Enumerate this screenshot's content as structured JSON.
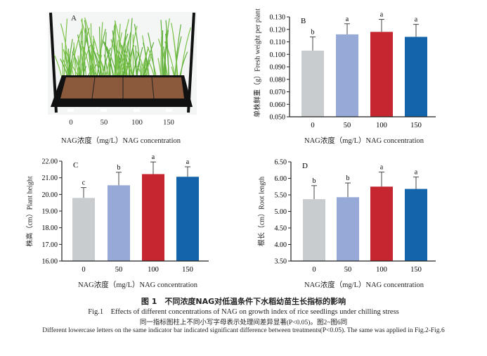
{
  "colors": {
    "0": "#c9cccf",
    "50": "#97aad7",
    "100": "#c6262f",
    "150": "#1464ac"
  },
  "panel_a": {
    "label": "A",
    "image": "photo of rice seedlings in tray with four treatments",
    "x_ticks": [
      "0",
      "50",
      "100",
      "150"
    ],
    "xlabel": "NAG浓度（mg/L）NAG concentration"
  },
  "chart_data": [
    {
      "panel": "B",
      "type": "bar",
      "categories": [
        "0",
        "50",
        "100",
        "150"
      ],
      "values": [
        0.103,
        0.116,
        0.118,
        0.114
      ],
      "error_upper": [
        0.114,
        0.1245,
        0.128,
        0.124
      ],
      "significance": [
        "b",
        "a",
        "a",
        "a"
      ],
      "ylim": [
        0.05,
        0.13
      ],
      "yticks": [
        "0.050",
        "0.060",
        "0.070",
        "0.080",
        "0.090",
        "0.100",
        "0.110",
        "0.120",
        "0.130"
      ],
      "ylabel": "单株鲜重（g）Fresh weight per plant",
      "xlabel": "NAG浓度（mg/L）NAG concentration"
    },
    {
      "panel": "C",
      "type": "bar",
      "categories": [
        "0",
        "50",
        "100",
        "150"
      ],
      "values": [
        19.79,
        20.55,
        21.22,
        21.06
      ],
      "error_upper": [
        20.41,
        21.33,
        21.95,
        21.66
      ],
      "significance": [
        "c",
        "b",
        "a",
        "a"
      ],
      "ylim": [
        16,
        22
      ],
      "yticks": [
        "16.00",
        "17.00",
        "18.00",
        "19.00",
        "20.00",
        "21.00",
        "22.00"
      ],
      "ylabel": "株高（cm）Plant height",
      "xlabel": "NAG浓度（mg/L）NAG concentration"
    },
    {
      "panel": "D",
      "type": "bar",
      "categories": [
        "0",
        "50",
        "100",
        "150"
      ],
      "values": [
        5.37,
        5.43,
        5.75,
        5.68
      ],
      "error_upper": [
        5.78,
        5.86,
        6.19,
        6.04
      ],
      "significance": [
        "b",
        "b",
        "a",
        "a"
      ],
      "ylim": [
        3.5,
        6.5
      ],
      "yticks": [
        "3.50",
        "4.00",
        "4.50",
        "5.00",
        "5.50",
        "6.00",
        "6.50"
      ],
      "ylabel": "根长（cm）Root length",
      "xlabel": "NAG浓度（mg/L）NAG concentration"
    }
  ],
  "caption": {
    "title_cn": "图 1　不同浓度NAG对低温条件下水稻幼苗生长指标的影响",
    "title_en": "Fig.1　Effects of different concentrations of NAG on growth index of rice seedlings under chilling stress",
    "note_cn": "同一指标图柱上不同小写字母表示处理间差异显著(P<0.05)。图2~图6同",
    "note_en": "Different lowercase letters on the same indicator bar indicated significant difference between treatments(P<0.05). The same was applied in Fig.2-Fig.6"
  }
}
